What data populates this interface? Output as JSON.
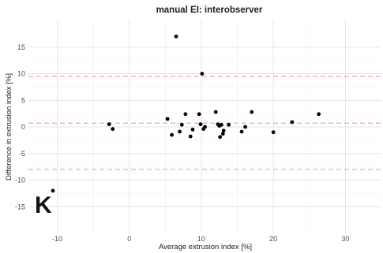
{
  "chart_data": {
    "type": "scatter",
    "title": "manual EI: interobserver",
    "xlabel": "Average extrusion index [%]",
    "ylabel": "Difference in extrusion index [%]",
    "panel_label": "K",
    "xlim": [
      -14,
      35
    ],
    "ylim": [
      -20,
      20
    ],
    "xticks": [
      -10,
      0,
      10,
      20,
      30
    ],
    "yticks": [
      -15,
      -10,
      -5,
      0,
      5,
      10,
      15
    ],
    "grid": true,
    "reference_lines": {
      "mean_difference": 0.7,
      "upper_limit": 9.5,
      "lower_limit": -8.0,
      "color": "#f4a6a0"
    },
    "point_color": "#000000",
    "points": [
      {
        "x": -10.6,
        "y": -12.0
      },
      {
        "x": -2.8,
        "y": 0.5
      },
      {
        "x": -2.3,
        "y": -0.4
      },
      {
        "x": 5.3,
        "y": 1.5
      },
      {
        "x": 5.9,
        "y": -1.5
      },
      {
        "x": 6.5,
        "y": 17.0
      },
      {
        "x": 7.0,
        "y": -0.9
      },
      {
        "x": 7.3,
        "y": 0.4
      },
      {
        "x": 7.8,
        "y": 2.4
      },
      {
        "x": 8.5,
        "y": -1.8
      },
      {
        "x": 8.8,
        "y": -0.5
      },
      {
        "x": 9.7,
        "y": 2.4
      },
      {
        "x": 9.9,
        "y": 0.5
      },
      {
        "x": 10.1,
        "y": 10.0
      },
      {
        "x": 10.3,
        "y": -0.4
      },
      {
        "x": 10.5,
        "y": 0.0
      },
      {
        "x": 12.0,
        "y": 2.8
      },
      {
        "x": 12.3,
        "y": 0.5
      },
      {
        "x": 12.5,
        "y": 0.2
      },
      {
        "x": 12.6,
        "y": -1.9
      },
      {
        "x": 12.8,
        "y": 0.4
      },
      {
        "x": 13.0,
        "y": -1.3
      },
      {
        "x": 13.1,
        "y": -0.7
      },
      {
        "x": 13.8,
        "y": 0.4
      },
      {
        "x": 15.6,
        "y": -0.9
      },
      {
        "x": 16.1,
        "y": 0.0
      },
      {
        "x": 17.0,
        "y": 2.8
      },
      {
        "x": 20.0,
        "y": -1.0
      },
      {
        "x": 22.6,
        "y": 0.9
      },
      {
        "x": 26.3,
        "y": 2.4
      }
    ]
  }
}
